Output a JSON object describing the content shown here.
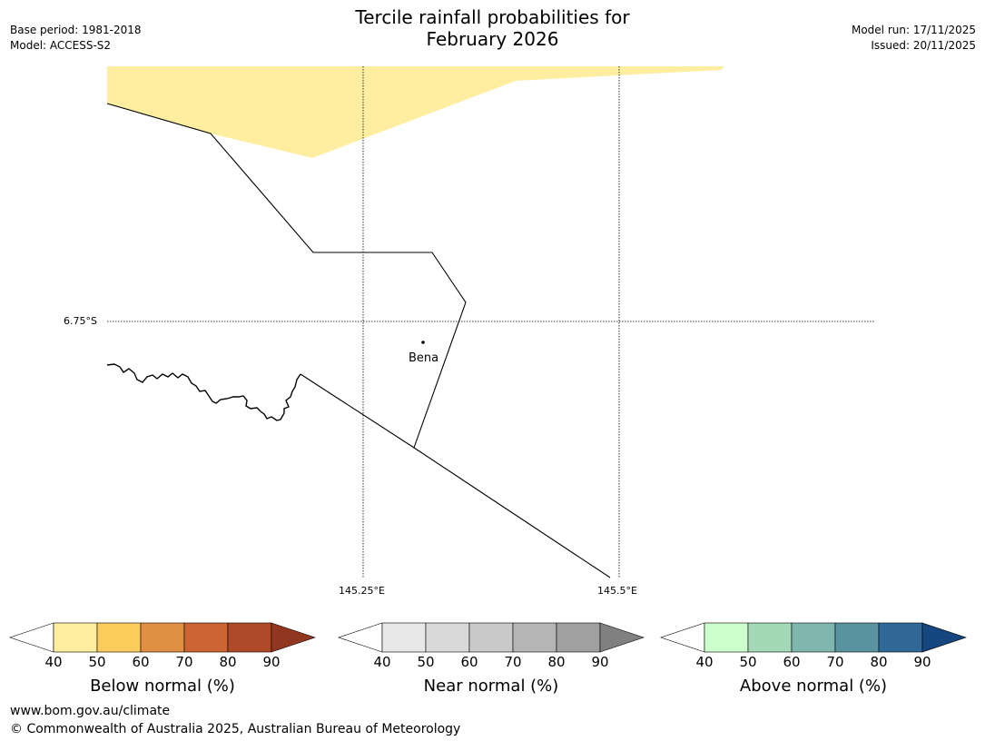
{
  "title": {
    "line1": "Tercile rainfall probabilities for",
    "line2": "February 2026"
  },
  "meta_left": {
    "base_period": "Base period: 1981-2018",
    "model": "Model: ACCESS-S2"
  },
  "meta_right": {
    "model_run": "Model run: 17/11/2025",
    "issued": "Issued: 20/11/2025"
  },
  "map": {
    "lat_label": "6.75°S",
    "lon_labels": [
      "145.25°E",
      "145.5°E"
    ],
    "place_name": "Bena",
    "shading_category": "Below normal 40-50%",
    "shading_color": "#ffeda0"
  },
  "colorbars": [
    {
      "label": "Below normal (%)",
      "ticks": [
        "40",
        "50",
        "60",
        "70",
        "80",
        "90"
      ],
      "colors": [
        "#ffeda0",
        "#fecc5c",
        "#e09043",
        "#cc6533",
        "#ae4a27",
        "#913720"
      ]
    },
    {
      "label": "Near normal (%)",
      "ticks": [
        "40",
        "50",
        "60",
        "70",
        "80",
        "90"
      ],
      "colors": [
        "#e8e8e8",
        "#d9d9d9",
        "#c9c9c9",
        "#b5b5b5",
        "#a0a0a0",
        "#808080"
      ]
    },
    {
      "label": "Above normal (%)",
      "ticks": [
        "40",
        "50",
        "60",
        "70",
        "80",
        "90"
      ],
      "colors": [
        "#ccffcc",
        "#a4d9b8",
        "#7fb6ad",
        "#5a93a0",
        "#306898",
        "#16467e"
      ]
    }
  ],
  "footer": {
    "url": "www.bom.gov.au/climate",
    "copyright": "© Commonwealth of Australia 2025, Australian Bureau of Meteorology"
  }
}
